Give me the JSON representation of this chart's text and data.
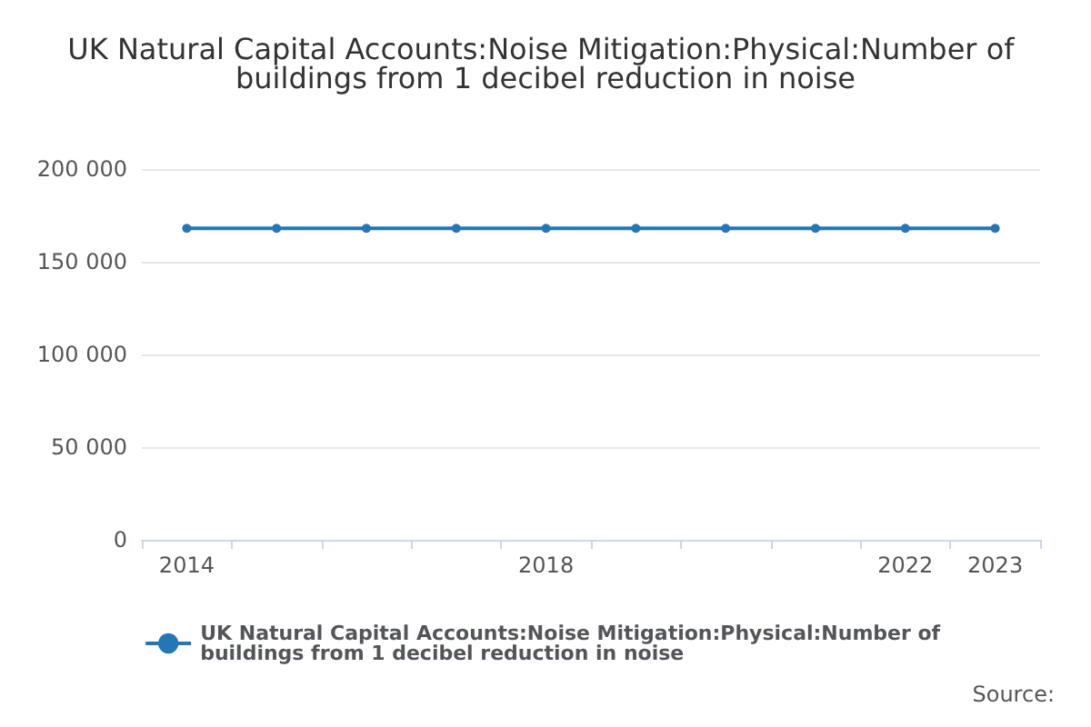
{
  "chart_data": {
    "type": "line",
    "title": "UK Natural Capital Accounts:Noise Mitigation:Physical:Number of buildings from 1 decibel reduction in noise",
    "categories": [
      "2014",
      null,
      null,
      null,
      "2018",
      null,
      null,
      null,
      "2022",
      "2023"
    ],
    "series": [
      {
        "name": "UK Natural Capital Accounts:Noise Mitigation:Physical:Number of buildings from 1 decibel reduction in noise",
        "color": "#2477b5",
        "values": [
          168000,
          168000,
          168000,
          168000,
          168000,
          168000,
          168000,
          168000,
          168000,
          168000
        ]
      }
    ],
    "ylim": [
      0,
      200000
    ],
    "yticks": [
      0,
      {
        "value": 50000,
        "label": "50 000"
      },
      {
        "value": 100000,
        "label": "100 000"
      },
      {
        "value": 150000,
        "label": "150 000"
      },
      {
        "value": 200000,
        "label": "200 000"
      }
    ],
    "grid": "y",
    "legend": "bottom",
    "marker": "circle",
    "line_style": "solid",
    "annotations": [
      "Source:"
    ]
  }
}
